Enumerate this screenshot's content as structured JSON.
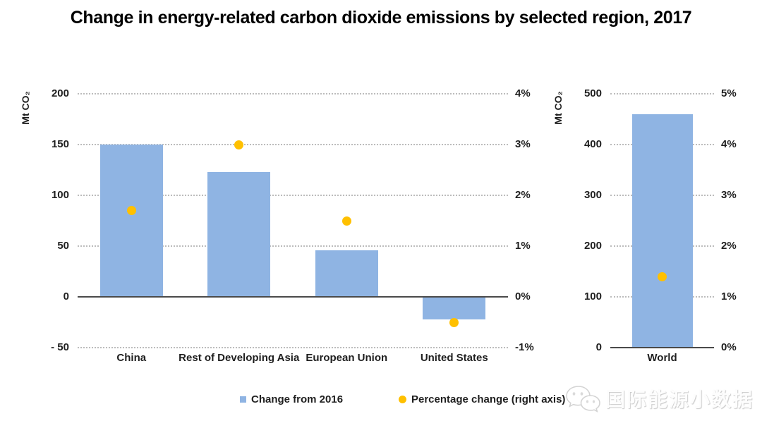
{
  "title": "Change in energy-related carbon dioxide emissions by selected region, 2017",
  "colors": {
    "bar": "#8fb4e3",
    "dot": "#ffc000",
    "grid": "#bcbcbc",
    "zero_line": "#4a4a4a",
    "text": "#1f1f1f"
  },
  "legend": {
    "items": [
      {
        "label": "Change from 2016",
        "marker": "square"
      },
      {
        "label": "Percentage change (right axis)",
        "marker": "circle"
      }
    ]
  },
  "watermark": {
    "icon": "wechat-icon",
    "text": "国际能源小数据"
  },
  "chart_data": [
    {
      "type": "bar",
      "name": "selected-regions",
      "categories": [
        "China",
        "Rest of Developing Asia",
        "European Union",
        "United States"
      ],
      "series": [
        {
          "name": "Change from 2016",
          "type": "bar",
          "axis": "left",
          "color": "#8fb4e3",
          "values": [
            150,
            123,
            46,
            -22
          ]
        },
        {
          "name": "Percentage change (right axis)",
          "type": "scatter",
          "axis": "right",
          "color": "#ffc000",
          "values": [
            1.7,
            3.0,
            1.5,
            -0.5
          ]
        }
      ],
      "left_axis": {
        "label": "Mt CO₂",
        "min": -50,
        "max": 200,
        "ticks": [
          {
            "v": 200,
            "t": "200"
          },
          {
            "v": 150,
            "t": "150"
          },
          {
            "v": 100,
            "t": "100"
          },
          {
            "v": 50,
            "t": "50"
          },
          {
            "v": 0,
            "t": "0"
          },
          {
            "v": -50,
            "t": "- 50"
          }
        ]
      },
      "right_axis": {
        "min": -1,
        "max": 4,
        "ticks": [
          {
            "v": 4,
            "t": "4%"
          },
          {
            "v": 3,
            "t": "3%"
          },
          {
            "v": 2,
            "t": "2%"
          },
          {
            "v": 1,
            "t": "1%"
          },
          {
            "v": 0,
            "t": "0%"
          },
          {
            "v": -1,
            "t": "-1%"
          }
        ]
      },
      "grid": "horizontal-dotted",
      "zero_line": true
    },
    {
      "type": "bar",
      "name": "world",
      "categories": [
        "World"
      ],
      "series": [
        {
          "name": "Change from 2016",
          "type": "bar",
          "axis": "left",
          "color": "#8fb4e3",
          "values": [
            460
          ]
        },
        {
          "name": "Percentage change (right axis)",
          "type": "scatter",
          "axis": "right",
          "color": "#ffc000",
          "values": [
            1.4
          ]
        }
      ],
      "left_axis": {
        "label": "Mt CO₂",
        "min": 0,
        "max": 500,
        "ticks": [
          {
            "v": 500,
            "t": "500"
          },
          {
            "v": 400,
            "t": "400"
          },
          {
            "v": 300,
            "t": "300"
          },
          {
            "v": 200,
            "t": "200"
          },
          {
            "v": 100,
            "t": "100"
          },
          {
            "v": 0,
            "t": "0"
          }
        ]
      },
      "right_axis": {
        "min": 0,
        "max": 5,
        "ticks": [
          {
            "v": 5,
            "t": "5%"
          },
          {
            "v": 4,
            "t": "4%"
          },
          {
            "v": 3,
            "t": "3%"
          },
          {
            "v": 2,
            "t": "2%"
          },
          {
            "v": 1,
            "t": "1%"
          },
          {
            "v": 0,
            "t": "0%"
          }
        ]
      },
      "grid": "horizontal-dotted",
      "zero_line": true
    }
  ]
}
